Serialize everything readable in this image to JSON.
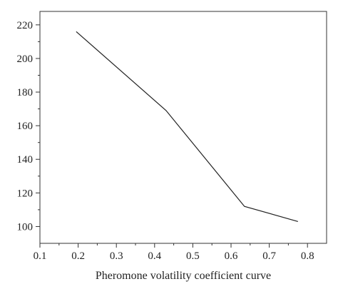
{
  "chart_data": {
    "type": "line",
    "title": "",
    "xlabel": "Pheromone volatility coefficient curve",
    "ylabel": "",
    "xlim": [
      0.1,
      0.85
    ],
    "ylim": [
      90,
      228
    ],
    "x_ticks": [
      0.1,
      0.2,
      0.3,
      0.4,
      0.5,
      0.6,
      0.7,
      0.8
    ],
    "x_tick_labels": [
      "0.1",
      "0.2",
      "0.3",
      "0.4",
      "0.5",
      "0.6",
      "0.7",
      "0.8"
    ],
    "y_ticks": [
      100,
      120,
      140,
      160,
      180,
      200,
      220
    ],
    "y_tick_labels": [
      "100",
      "120",
      "140",
      "160",
      "180",
      "200",
      "220"
    ],
    "grid": false,
    "legend": "none",
    "series": [
      {
        "x": [
          0.195,
          0.43,
          0.635,
          0.775
        ],
        "y": [
          216,
          169,
          112,
          103
        ],
        "color": "#222222"
      }
    ]
  }
}
